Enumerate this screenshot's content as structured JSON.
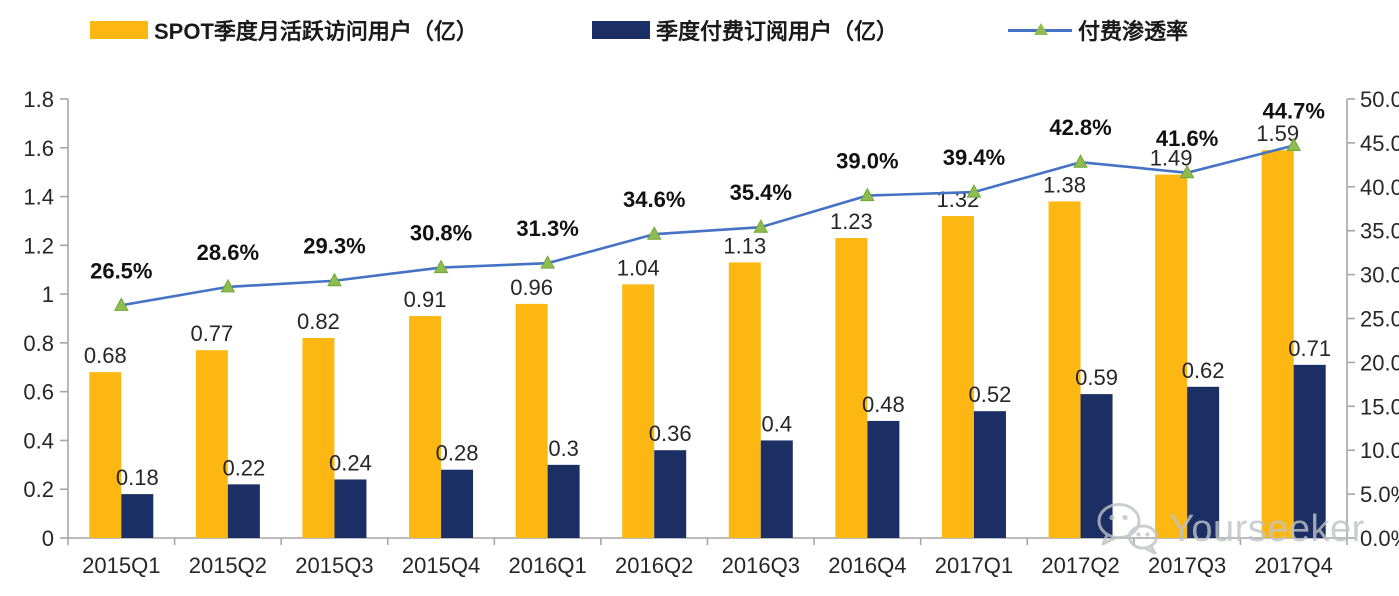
{
  "legend": [
    {
      "label": "SPOT季度月活跃访问用户（亿）",
      "swatch": "bar",
      "color": "#fcb713"
    },
    {
      "label": "季度付费订阅用户（亿）",
      "swatch": "bar",
      "color": "#1b2f64"
    },
    {
      "label": "付费渗透率",
      "swatch": "line-marker",
      "line_color": "#4472c4",
      "marker_color": "#8fbc4f",
      "marker_stroke": "#6fa83c"
    }
  ],
  "chart_data": {
    "type": "bar",
    "subtype": "bar+line combo, dual axis",
    "categories": [
      "2015Q1",
      "2015Q2",
      "2015Q3",
      "2015Q4",
      "2016Q1",
      "2016Q2",
      "2016Q3",
      "2016Q4",
      "2017Q1",
      "2017Q2",
      "2017Q3",
      "2017Q4"
    ],
    "series": [
      {
        "name": "SPOT季度月活跃访问用户（亿）",
        "type": "bar",
        "axis": "left",
        "color": "#fcb713",
        "values": [
          0.68,
          0.77,
          0.82,
          0.91,
          0.96,
          1.04,
          1.13,
          1.23,
          1.32,
          1.38,
          1.49,
          1.59
        ],
        "labels": [
          "0.68",
          "0.77",
          "0.82",
          "0.91",
          "0.96",
          "1.04",
          "1.13",
          "1.23",
          "1.32",
          "1.38",
          "1.49",
          "1.59"
        ]
      },
      {
        "name": "季度付费订阅用户（亿）",
        "type": "bar",
        "axis": "left",
        "color": "#1b2f64",
        "values": [
          0.18,
          0.22,
          0.24,
          0.28,
          0.3,
          0.36,
          0.4,
          0.48,
          0.52,
          0.59,
          0.62,
          0.71
        ],
        "labels": [
          "0.18",
          "0.22",
          "0.24",
          "0.28",
          "0.3",
          "0.36",
          "0.4",
          "0.48",
          "0.52",
          "0.59",
          "0.62",
          "0.71"
        ]
      },
      {
        "name": "付费渗透率",
        "type": "line",
        "axis": "right",
        "color": "#4472c4",
        "marker": "triangle",
        "marker_color": "#8fbc4f",
        "marker_stroke": "#6fa83c",
        "values": [
          26.5,
          28.6,
          29.3,
          30.8,
          31.3,
          34.6,
          35.4,
          39.0,
          39.4,
          42.8,
          41.6,
          44.7
        ],
        "labels": [
          "26.5%",
          "28.6%",
          "29.3%",
          "30.8%",
          "31.3%",
          "34.6%",
          "35.4%",
          "39.0%",
          "39.4%",
          "42.8%",
          "41.6%",
          "44.7%"
        ]
      }
    ],
    "left_axis": {
      "min": 0,
      "max": 1.8,
      "step": 0.2,
      "ticks": [
        "0",
        "0.2",
        "0.4",
        "0.6",
        "0.8",
        "1",
        "1.2",
        "1.4",
        "1.6",
        "1.8"
      ]
    },
    "right_axis": {
      "min": 0,
      "max": 50,
      "step": 5,
      "ticks": [
        "0.0%",
        "5.0%",
        "10.0%",
        "15.0%",
        "20.0%",
        "25.0%",
        "30.0%",
        "35.0%",
        "40.0%",
        "45.0%",
        "50.0%"
      ]
    },
    "title": "",
    "xlabel": "",
    "ylabel": "",
    "grid": false,
    "legend_position": "top"
  },
  "watermark": {
    "text": "Yourseeker",
    "icon": "wechat-icon",
    "color": "#bfc3c6"
  },
  "colors": {
    "axis": "#a6a6a6",
    "label_text": "#262626",
    "background": "#ffffff"
  }
}
